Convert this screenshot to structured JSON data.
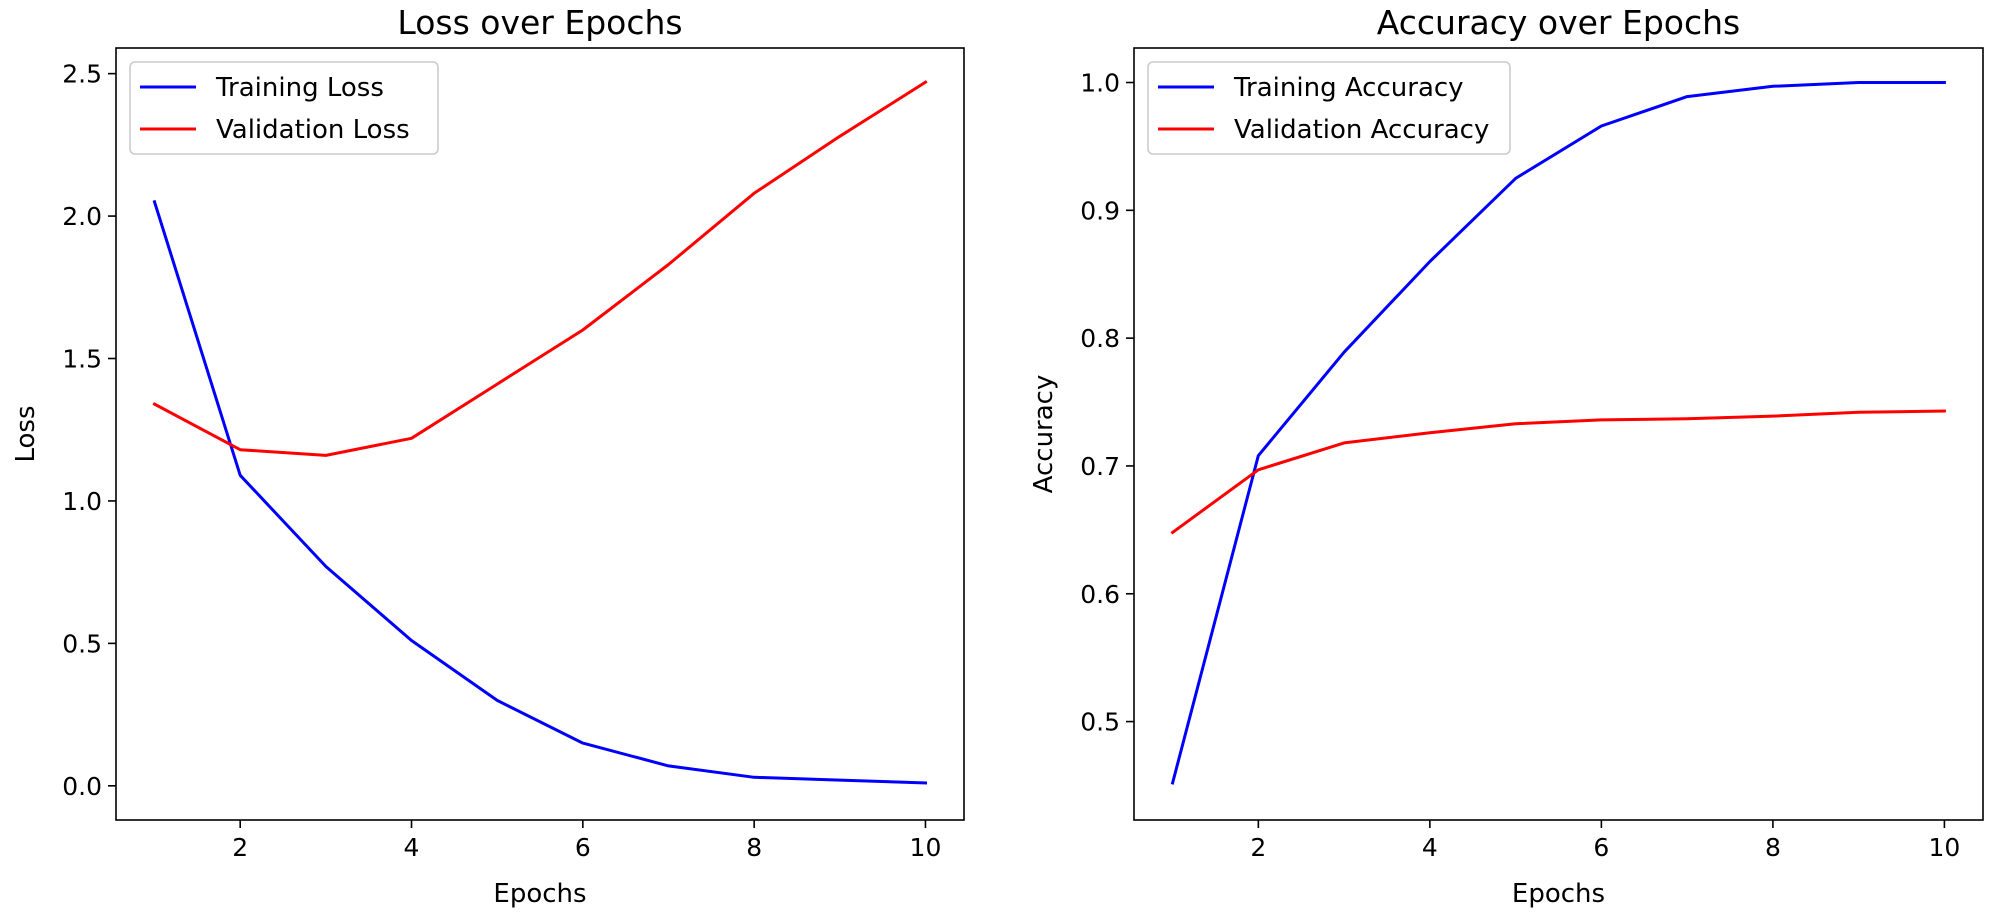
{
  "chart_data": [
    {
      "type": "line",
      "title": "Loss over Epochs",
      "xlabel": "Epochs",
      "ylabel": "Loss",
      "xlim": [
        0.55,
        10.45
      ],
      "ylim": [
        -0.12,
        2.59
      ],
      "xticks": [
        2,
        4,
        6,
        8,
        10
      ],
      "yticks": [
        0.0,
        0.5,
        1.0,
        1.5,
        2.0,
        2.5
      ],
      "ytick_labels": [
        "0.0",
        "0.5",
        "1.0",
        "1.5",
        "2.0",
        "2.5"
      ],
      "legend": "upper left",
      "grid": false,
      "x": [
        1,
        2,
        3,
        4,
        5,
        6,
        7,
        8,
        9,
        10
      ],
      "series": [
        {
          "name": "Training Loss",
          "color": "#0000ff",
          "values": [
            2.05,
            1.09,
            0.77,
            0.51,
            0.3,
            0.15,
            0.07,
            0.03,
            0.02,
            0.01
          ]
        },
        {
          "name": "Validation Loss",
          "color": "#ff0000",
          "values": [
            1.34,
            1.18,
            1.16,
            1.22,
            1.41,
            1.6,
            1.83,
            2.08,
            2.28,
            2.47
          ]
        }
      ]
    },
    {
      "type": "line",
      "title": "Accuracy over Epochs",
      "xlabel": "Epochs",
      "ylabel": "Accuracy",
      "xlim": [
        0.55,
        10.45
      ],
      "ylim": [
        0.423,
        1.027
      ],
      "xticks": [
        2,
        4,
        6,
        8,
        10
      ],
      "yticks": [
        0.5,
        0.6,
        0.7,
        0.8,
        0.9,
        1.0
      ],
      "ytick_labels": [
        "0.5",
        "0.6",
        "0.7",
        "0.8",
        "0.9",
        "1.0"
      ],
      "legend": "upper left",
      "grid": false,
      "x": [
        1,
        2,
        3,
        4,
        5,
        6,
        7,
        8,
        9,
        10
      ],
      "series": [
        {
          "name": "Training Accuracy",
          "color": "#0000ff",
          "values": [
            0.452,
            0.708,
            0.789,
            0.86,
            0.925,
            0.966,
            0.989,
            0.997,
            1.0,
            1.0
          ]
        },
        {
          "name": "Validation Accuracy",
          "color": "#ff0000",
          "values": [
            0.648,
            0.697,
            0.718,
            0.726,
            0.733,
            0.736,
            0.737,
            0.739,
            0.742,
            0.743
          ]
        }
      ]
    }
  ]
}
